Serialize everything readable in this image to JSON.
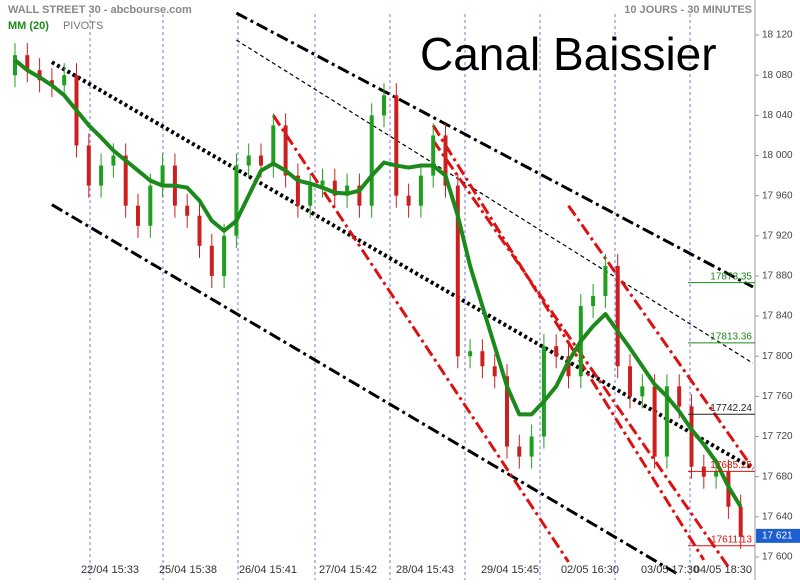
{
  "chart_data": {
    "type": "candlestick",
    "title": "Canal Baissier",
    "source": "WALL STREET 30 - abcbourse.com",
    "period": "10 JOURS - 30 MINUTES",
    "indicators": [
      {
        "name": "MM (20)",
        "color": "#1a8a1a"
      },
      {
        "name": "PIVOTS",
        "color": "#777777"
      }
    ],
    "x_labels": [
      "22/04 15:33",
      "25/04 15:38",
      "26/04 15:41",
      "27/04 15:42",
      "28/04 15:43",
      "29/04 15:45",
      "02/05 16:30",
      "03/05 17:30",
      "04/05 18:30"
    ],
    "up_color": "#1f9e1f",
    "down_color": "#cc1f1f",
    "open": [
      18080,
      18100,
      18085,
      18075,
      18070,
      18080,
      18010,
      17970,
      17990,
      18000,
      17950,
      17930,
      17970,
      17990,
      17950,
      17940,
      17910,
      17880,
      17920,
      17990,
      18000,
      17990,
      18030,
      17980,
      17950,
      17970,
      17975,
      17960,
      17970,
      17950,
      18040,
      18060,
      17960,
      17950,
      17980,
      18020,
      17970,
      17800,
      17805,
      17790,
      17780,
      17710,
      17700,
      17720,
      17810,
      17800,
      17780,
      17850,
      17860,
      17890,
      17790,
      17760,
      17770,
      17700,
      17770,
      17750,
      17690,
      17680,
      17685,
      17650
    ],
    "high": [
      18112,
      18112,
      18097,
      18087,
      18092,
      18092,
      18022,
      18002,
      18012,
      18012,
      17962,
      17982,
      18002,
      18002,
      17962,
      17952,
      17922,
      17932,
      18002,
      18012,
      18012,
      18042,
      18042,
      17992,
      17982,
      17987,
      17987,
      17982,
      17982,
      18052,
      18072,
      18072,
      17972,
      17992,
      18032,
      18032,
      17982,
      17817,
      17817,
      17802,
      17792,
      17722,
      17732,
      17822,
      17822,
      17812,
      17862,
      17872,
      17902,
      17902,
      17802,
      17782,
      17782,
      17782,
      17782,
      17762,
      17702,
      17697,
      17697,
      17662
    ],
    "low": [
      18068,
      18073,
      18063,
      18058,
      18058,
      17998,
      17958,
      17958,
      17978,
      17938,
      17918,
      17918,
      17958,
      17938,
      17928,
      17898,
      17868,
      17868,
      17908,
      17978,
      17978,
      17978,
      17968,
      17938,
      17938,
      17958,
      17948,
      17948,
      17938,
      17938,
      18028,
      17948,
      17938,
      17938,
      17968,
      17958,
      17788,
      17788,
      17778,
      17768,
      17698,
      17688,
      17688,
      17708,
      17788,
      17768,
      17768,
      17838,
      17848,
      17778,
      17748,
      17748,
      17688,
      17688,
      17738,
      17678,
      17668,
      17668,
      17638,
      17608
    ],
    "close": [
      18100,
      18085,
      18075,
      18070,
      18080,
      18010,
      17970,
      17990,
      18000,
      17950,
      17930,
      17970,
      17990,
      17950,
      17940,
      17910,
      17880,
      17920,
      17990,
      18000,
      17990,
      18030,
      17980,
      17950,
      17970,
      17975,
      17960,
      17970,
      17950,
      18040,
      18060,
      17960,
      17950,
      17980,
      18020,
      17970,
      17800,
      17805,
      17790,
      17780,
      17710,
      17700,
      17720,
      17810,
      17800,
      17780,
      17850,
      17860,
      17890,
      17790,
      17760,
      17770,
      17700,
      17770,
      17750,
      17690,
      17680,
      17685,
      17650,
      17620
    ],
    "moving_average": [
      18095,
      18085,
      18078,
      18070,
      18060,
      18045,
      18030,
      18018,
      18005,
      17995,
      17985,
      17975,
      17970,
      17970,
      17968,
      17955,
      17935,
      17925,
      17935,
      17960,
      17985,
      17992,
      17985,
      17975,
      17972,
      17968,
      17963,
      17962,
      17965,
      17980,
      17993,
      17990,
      17988,
      17990,
      17990,
      17980,
      17940,
      17890,
      17850,
      17810,
      17770,
      17742,
      17742,
      17755,
      17770,
      17795,
      17815,
      17830,
      17842,
      17825,
      17808,
      17790,
      17772,
      17760,
      17745,
      17727,
      17712,
      17695,
      17670,
      17650
    ],
    "channels": [
      {
        "color": "#000000",
        "style": "dashdot",
        "points": [
          [
            18,
            18142
          ],
          [
            60,
            17869
          ]
        ]
      },
      {
        "color": "#000000",
        "style": "dashed",
        "points": [
          [
            18,
            18115
          ],
          [
            60,
            17793
          ]
        ]
      },
      {
        "color": "#000000",
        "style": "dotted",
        "points": [
          [
            3,
            18093
          ],
          [
            60,
            17688
          ]
        ]
      },
      {
        "color": "#000000",
        "style": "dashdot",
        "points": [
          [
            3,
            17951
          ],
          [
            54,
            17582
          ]
        ]
      },
      {
        "color": "#dd1111",
        "style": "dashdot",
        "points": [
          [
            21,
            18040
          ],
          [
            45,
            17595
          ]
        ]
      },
      {
        "color": "#dd1111",
        "style": "dashdot",
        "points": [
          [
            34,
            18030
          ],
          [
            56,
            17597
          ]
        ]
      },
      {
        "color": "#dd1111",
        "style": "dashdot",
        "points": [
          [
            34,
            18015
          ],
          [
            58,
            17590
          ]
        ]
      },
      {
        "color": "#dd1111",
        "style": "dashdot",
        "points": [
          [
            45,
            17950
          ],
          [
            60,
            17688
          ]
        ]
      }
    ],
    "pivots": [
      {
        "value": 17873.35,
        "color": "#1a8a1a"
      },
      {
        "value": 17813.36,
        "color": "#1a8a1a"
      },
      {
        "value": 17742.24,
        "color": "#222222"
      },
      {
        "value": 17685.25,
        "color": "#dd1111"
      },
      {
        "value": 17611.13,
        "color": "#dd1111"
      }
    ],
    "last_price": {
      "value": 17621,
      "label": "17 621"
    },
    "ylim": [
      17580,
      18150
    ],
    "yticks": [
      {
        "value": 17600,
        "label": "17 600"
      },
      {
        "value": 17640,
        "label": "17 640"
      },
      {
        "value": 17680,
        "label": "17 680"
      },
      {
        "value": 17720,
        "label": "17 720"
      },
      {
        "value": 17760,
        "label": "17 760"
      },
      {
        "value": 17800,
        "label": "17 800"
      },
      {
        "value": 17840,
        "label": "17 840"
      },
      {
        "value": 17880,
        "label": "17 880"
      },
      {
        "value": 17920,
        "label": "17 920"
      },
      {
        "value": 17960,
        "label": "17 960"
      },
      {
        "value": 18000,
        "label": "18 000"
      },
      {
        "value": 18040,
        "label": "18 040"
      },
      {
        "value": 18080,
        "label": "18 080"
      },
      {
        "value": 18120,
        "label": "18 120"
      }
    ]
  }
}
